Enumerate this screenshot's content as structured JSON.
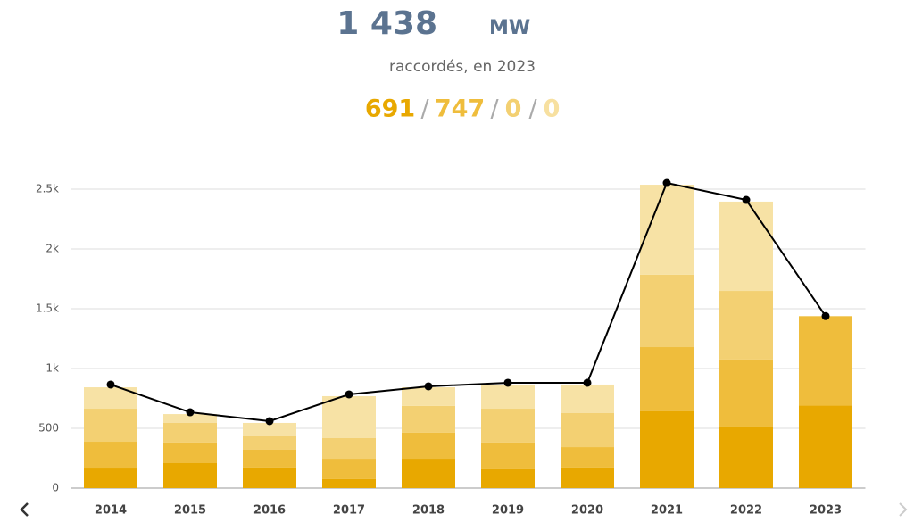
{
  "header": {
    "total": "1 438",
    "unit": "MW",
    "subtitle": "raccordés, en 2023",
    "breakdown": [
      "691",
      "747",
      "0",
      "0"
    ]
  },
  "chart_data": {
    "type": "bar",
    "stacked": true,
    "categories": [
      "2014",
      "2015",
      "2016",
      "2017",
      "2018",
      "2019",
      "2020",
      "2021",
      "2022",
      "2023"
    ],
    "series": [
      {
        "color": "#e8a800",
        "values": [
          164,
          209,
          172,
          75,
          246,
          157,
          172,
          642,
          515,
          691
        ]
      },
      {
        "color": "#efbd3c",
        "values": [
          224,
          172,
          149,
          171,
          217,
          224,
          171,
          537,
          560,
          747
        ]
      },
      {
        "color": "#f3d072",
        "values": [
          276,
          164,
          112,
          172,
          224,
          283,
          284,
          605,
          574,
          0
        ]
      },
      {
        "color": "#f7e2a5",
        "values": [
          179,
          74,
          112,
          351,
          156,
          202,
          239,
          753,
          747,
          0
        ]
      },
      {
        "type": "line",
        "color": "#000000",
        "values": [
          866,
          634,
          560,
          784,
          851,
          881,
          881,
          2552,
          2410,
          1438
        ]
      }
    ],
    "ylim": [
      0,
      2500
    ],
    "yticks": [
      0,
      500,
      {
        "value": 1000,
        "label": "1k"
      },
      {
        "value": 1500,
        "label": "1.5k"
      },
      {
        "value": 2000,
        "label": "2k"
      },
      {
        "value": 2500,
        "label": "2.5k"
      }
    ],
    "grid": true
  }
}
